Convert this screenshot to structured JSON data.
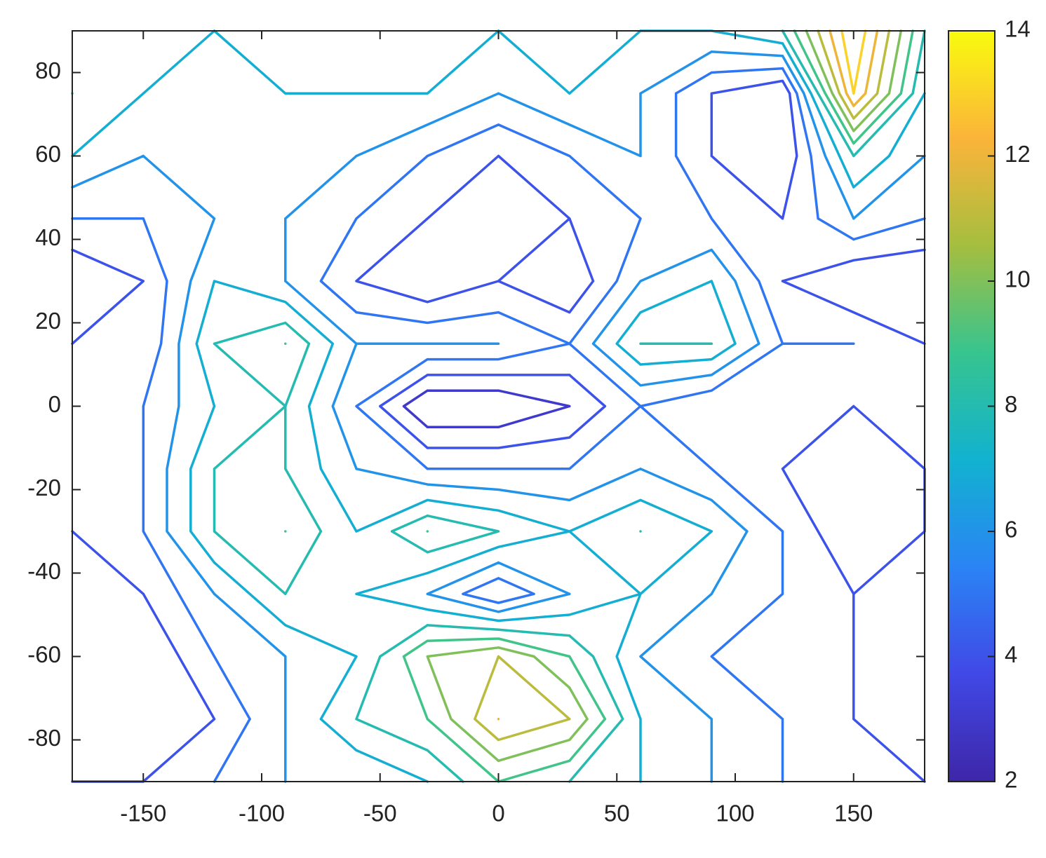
{
  "chart_data": {
    "type": "contour",
    "x": [
      -180,
      -150,
      -120,
      -90,
      -60,
      -30,
      0,
      30,
      60,
      90,
      120,
      150,
      180
    ],
    "y": [
      -90,
      -75,
      -60,
      -45,
      -30,
      -15,
      0,
      15,
      30,
      45,
      60,
      75,
      90
    ],
    "z": [
      [
        4,
        4,
        5,
        6,
        6,
        7,
        9,
        8,
        7,
        6,
        5,
        4,
        4
      ],
      [
        3,
        3,
        4,
        6,
        8,
        9,
        12,
        11,
        7,
        6,
        5,
        4,
        3
      ],
      [
        3,
        3,
        5,
        6,
        7,
        10,
        11,
        9,
        6,
        5,
        4,
        4,
        3
      ],
      [
        3,
        4,
        6,
        8,
        7,
        6,
        4,
        6,
        7,
        6,
        5,
        4,
        3
      ],
      [
        4,
        5,
        8,
        9,
        7,
        9,
        8,
        7,
        8,
        7,
        5,
        3,
        4
      ],
      [
        4,
        5,
        8,
        8,
        6,
        5,
        5,
        5,
        6,
        5,
        4,
        3,
        4
      ],
      [
        4,
        5,
        7,
        8,
        5,
        2,
        2,
        3,
        5,
        4,
        4,
        4,
        4
      ],
      [
        4,
        4,
        8,
        9,
        6,
        6,
        6,
        5,
        8,
        8,
        5,
        5,
        4
      ],
      [
        3,
        4,
        7,
        6,
        4,
        3,
        4,
        3,
        6,
        7,
        4,
        3,
        3
      ],
      [
        5,
        5,
        6,
        6,
        5,
        4,
        3,
        4,
        5,
        5,
        4,
        6,
        5
      ],
      [
        7,
        6,
        6,
        6,
        6,
        5,
        4,
        5,
        6,
        4,
        3,
        8,
        6
      ],
      [
        8,
        7,
        6,
        7,
        7,
        7,
        6,
        7,
        6,
        4,
        3,
        13,
        7
      ],
      [
        7,
        7,
        7,
        7,
        7,
        7,
        7,
        7,
        7,
        7,
        8,
        14,
        8
      ]
    ],
    "levels": [
      3,
      4,
      5,
      6,
      7,
      8,
      9,
      10,
      11,
      12,
      13
    ],
    "colormap": [
      "#3e26a8",
      "#4148e6",
      "#2a84f5",
      "#12b2d0",
      "#37c48f",
      "#a5be3f",
      "#fbb43a",
      "#f9fb0e"
    ],
    "xlim": [
      -180,
      180
    ],
    "ylim": [
      -90,
      90
    ],
    "xticks": [
      -150,
      -100,
      -50,
      0,
      50,
      100,
      150
    ],
    "yticks": [
      -80,
      -60,
      -40,
      -20,
      0,
      20,
      40,
      60,
      80
    ],
    "colorbar": {
      "clim": [
        2,
        14
      ],
      "ticks": [
        2,
        4,
        6,
        8,
        10,
        12,
        14
      ]
    }
  }
}
